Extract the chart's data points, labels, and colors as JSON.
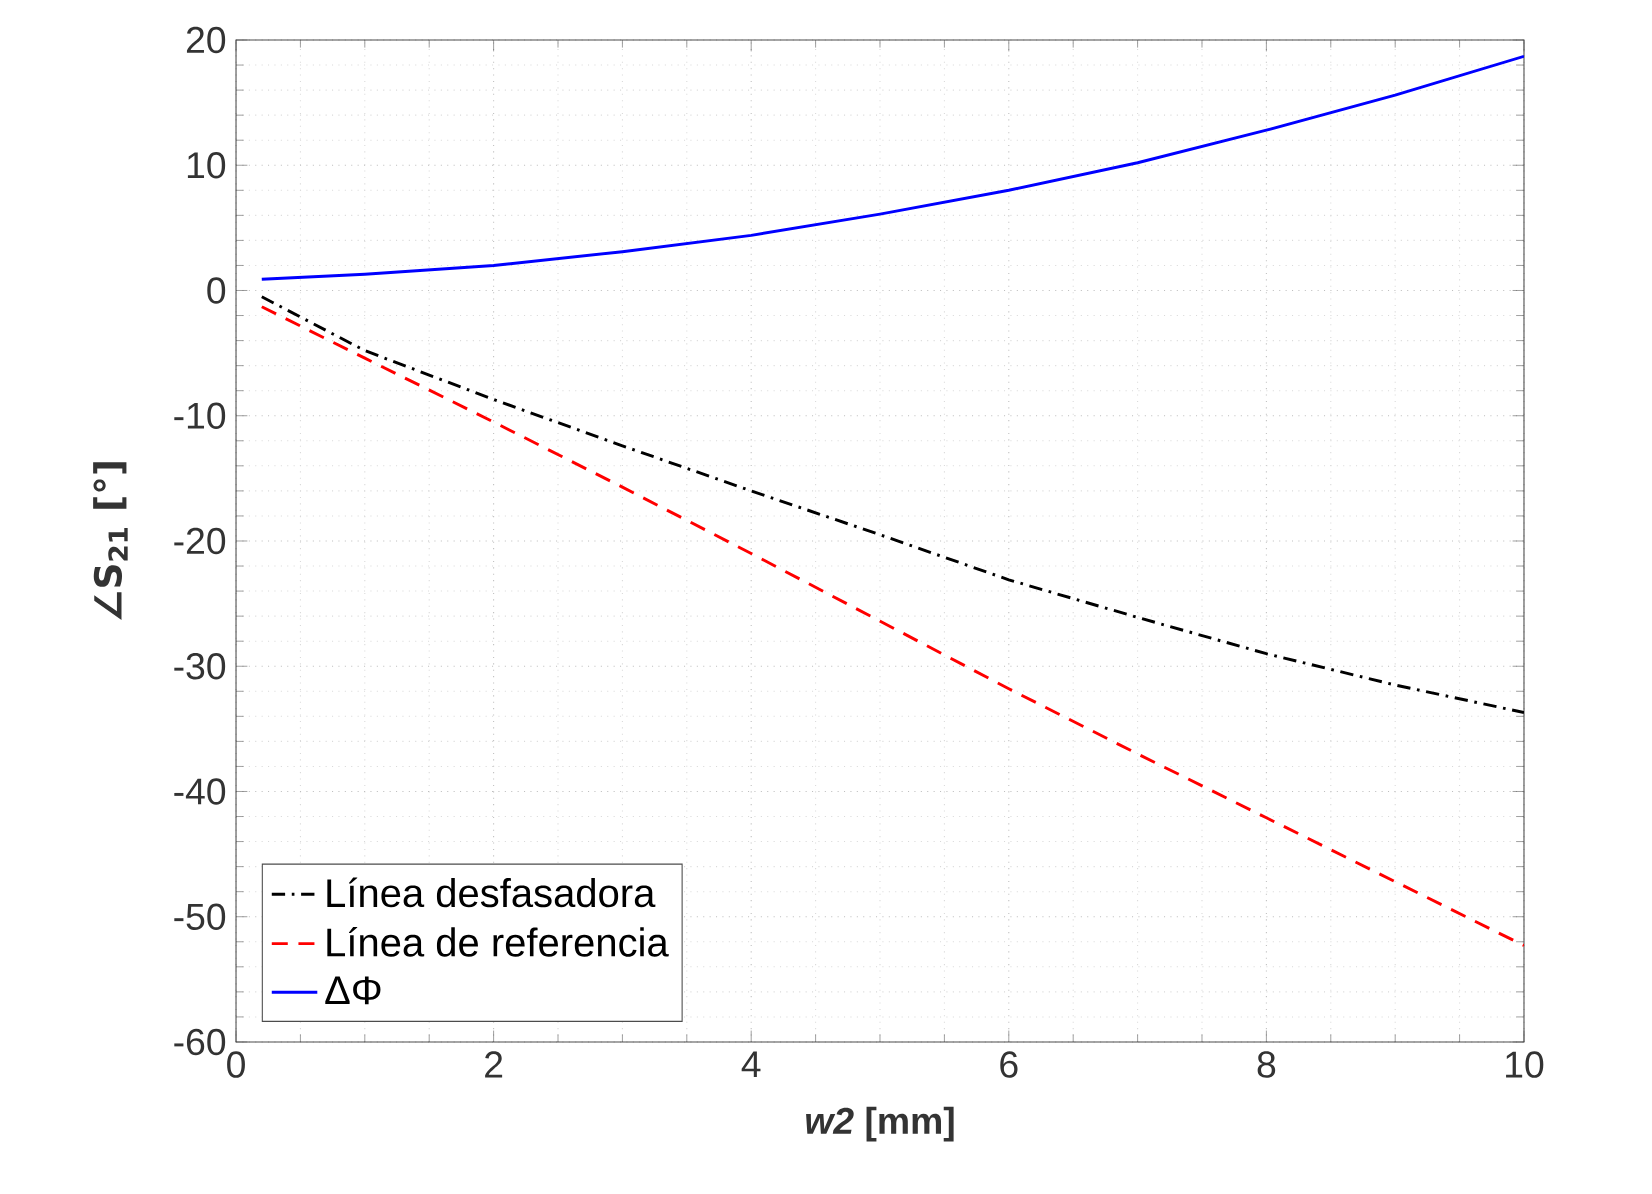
{
  "chart_data": {
    "type": "line",
    "xlabel": "*w2* [mm]",
    "ylabel": "∠S$_{21}$  [°]",
    "x": [
      0.2,
      1,
      2,
      3,
      4,
      5,
      6,
      7,
      8,
      9,
      10
    ],
    "series": [
      {
        "name": "Línea desfasadora",
        "color": "#000000",
        "line_style": "dashdot",
        "values": [
          -0.5,
          -4.8,
          -8.7,
          -12.4,
          -16.0,
          -19.5,
          -23.1,
          -26.1,
          -29.0,
          -31.5,
          -33.7
        ]
      },
      {
        "name": "Línea de referencia",
        "color": "#ff0000",
        "line_style": "dashed",
        "values": [
          -1.3,
          -5.4,
          -10.5,
          -15.7,
          -21.0,
          -26.4,
          -31.8,
          -37.0,
          -42.1,
          -47.2,
          -52.3
        ]
      },
      {
        "name": "ΔΦ",
        "color": "#0000ff",
        "line_style": "solid",
        "values": [
          0.9,
          1.3,
          2.0,
          3.1,
          4.4,
          6.1,
          8.0,
          10.2,
          12.8,
          15.6,
          18.7
        ]
      }
    ],
    "xlim": [
      0,
      10
    ],
    "ylim": [
      -60,
      20
    ],
    "xticks": [
      0,
      2,
      4,
      6,
      8,
      10
    ],
    "yticks": [
      -60,
      -50,
      -40,
      -30,
      -20,
      -10,
      0,
      10,
      20
    ],
    "grid": true,
    "legend": "bottom left"
  }
}
